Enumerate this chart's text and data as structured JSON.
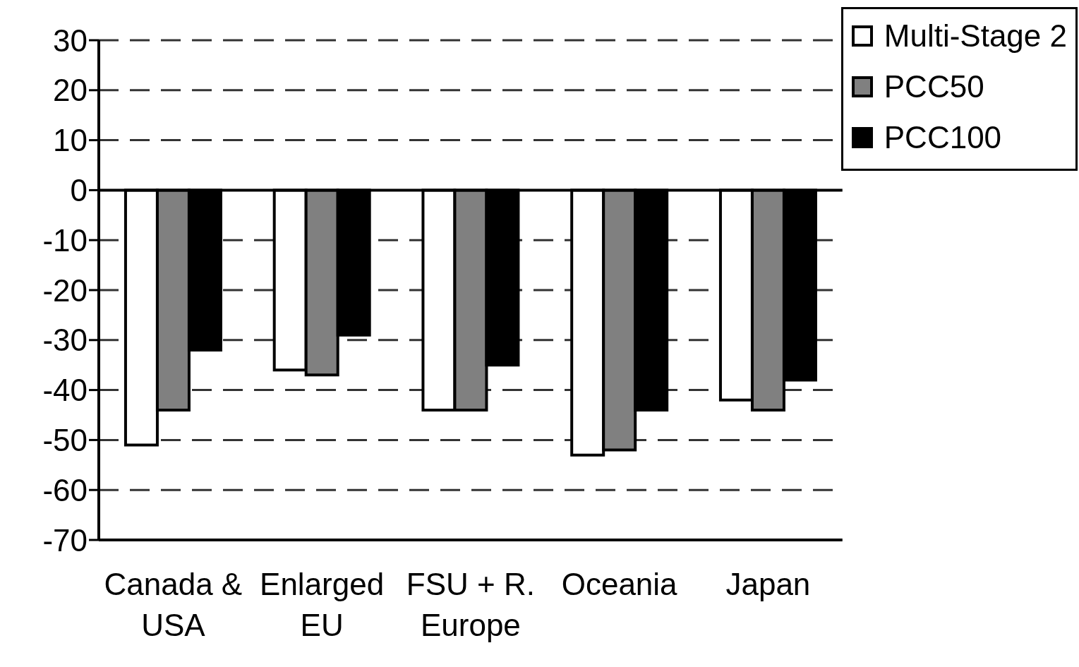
{
  "chart_data": {
    "type": "bar",
    "categories": [
      "Canada & USA",
      "Enlarged EU",
      "FSU + R. Europe",
      "Oceania",
      "Japan"
    ],
    "series": [
      {
        "name": "Multi-Stage 2",
        "color": "#ffffff",
        "values": [
          -51,
          -36,
          -44,
          -53,
          -42
        ]
      },
      {
        "name": "PCC50",
        "color": "#808080",
        "values": [
          -44,
          -37,
          -44,
          -52,
          -44
        ]
      },
      {
        "name": "PCC100",
        "color": "#000000",
        "values": [
          -32,
          -29,
          -35,
          -44,
          -38
        ]
      }
    ],
    "ylim": [
      -70,
      30
    ],
    "yticks": [
      -70,
      -60,
      -50,
      -40,
      -30,
      -20,
      -10,
      0,
      10,
      20,
      30
    ],
    "grid": "y",
    "legend": "top right"
  }
}
